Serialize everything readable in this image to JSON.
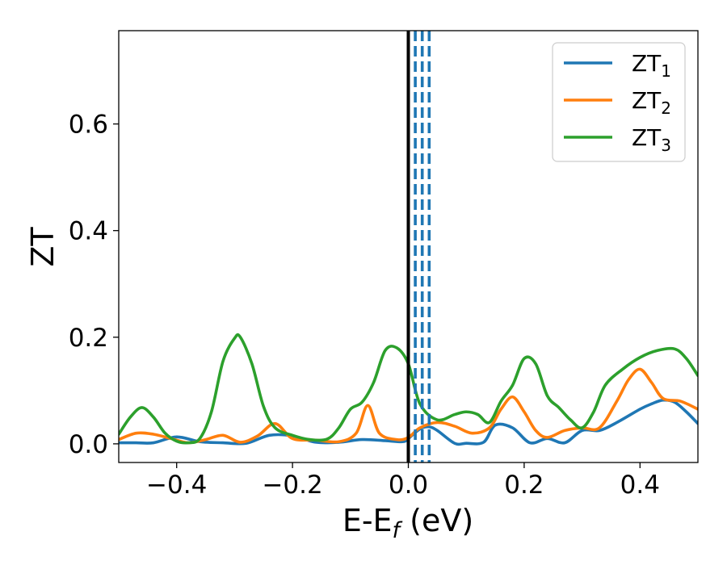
{
  "chart_data": {
    "type": "line",
    "title": "",
    "xlabel": "E-E",
    "xlabel_sub": "f",
    "xlabel_unit": " (eV)",
    "ylabel": "ZT",
    "xlim": [
      -0.5,
      0.5
    ],
    "ylim": [
      -0.035,
      0.775
    ],
    "x_ticks": [
      -0.4,
      -0.2,
      0.0,
      0.2,
      0.4
    ],
    "x_tick_labels": [
      "−0.4",
      "−0.2",
      "0.0",
      "0.2",
      "0.4"
    ],
    "y_ticks": [
      0.0,
      0.2,
      0.4,
      0.6
    ],
    "y_tick_labels": [
      "0.0",
      "0.2",
      "0.4",
      "0.6"
    ],
    "grid": false,
    "legend_position": "top-right",
    "vertical_lines": [
      {
        "x": 0.0,
        "style": "solid",
        "color": "#000000"
      },
      {
        "x": 0.012,
        "style": "dashed",
        "color": "#1f77b4"
      },
      {
        "x": 0.024,
        "style": "dashed",
        "color": "#1f77b4"
      },
      {
        "x": 0.036,
        "style": "dashed",
        "color": "#1f77b4"
      }
    ],
    "series": [
      {
        "name": "ZT",
        "name_sub": "1",
        "color": "#1f77b4",
        "x": [
          -0.5,
          -0.47,
          -0.44,
          -0.4,
          -0.36,
          -0.32,
          -0.28,
          -0.24,
          -0.2,
          -0.16,
          -0.12,
          -0.08,
          -0.04,
          -0.01,
          0.0,
          0.02,
          0.035,
          0.05,
          0.08,
          0.1,
          0.13,
          0.15,
          0.18,
          0.21,
          0.24,
          0.27,
          0.3,
          0.33,
          0.36,
          0.4,
          0.42,
          0.44,
          0.46,
          0.48,
          0.5
        ],
        "y": [
          0.002,
          0.002,
          0.002,
          0.013,
          0.004,
          0.002,
          0.001,
          0.016,
          0.015,
          0.003,
          0.003,
          0.008,
          0.006,
          0.004,
          0.01,
          0.028,
          0.032,
          0.025,
          0.001,
          0.001,
          0.003,
          0.035,
          0.03,
          0.002,
          0.01,
          0.002,
          0.025,
          0.025,
          0.04,
          0.065,
          0.075,
          0.082,
          0.078,
          0.06,
          0.038
        ]
      },
      {
        "name": "ZT",
        "name_sub": "2",
        "color": "#ff7f0e",
        "x": [
          -0.5,
          -0.47,
          -0.44,
          -0.41,
          -0.38,
          -0.35,
          -0.32,
          -0.29,
          -0.26,
          -0.23,
          -0.2,
          -0.16,
          -0.12,
          -0.09,
          -0.07,
          -0.05,
          -0.02,
          0.0,
          0.02,
          0.05,
          0.08,
          0.11,
          0.14,
          0.16,
          0.18,
          0.2,
          0.22,
          0.24,
          0.27,
          0.3,
          0.33,
          0.36,
          0.38,
          0.4,
          0.42,
          0.44,
          0.47,
          0.5
        ],
        "y": [
          0.008,
          0.02,
          0.018,
          0.01,
          0.002,
          0.008,
          0.016,
          0.003,
          0.015,
          0.038,
          0.01,
          0.007,
          0.004,
          0.02,
          0.072,
          0.02,
          0.008,
          0.012,
          0.03,
          0.04,
          0.033,
          0.02,
          0.03,
          0.065,
          0.088,
          0.06,
          0.025,
          0.012,
          0.025,
          0.03,
          0.03,
          0.08,
          0.12,
          0.14,
          0.115,
          0.085,
          0.08,
          0.065
        ]
      },
      {
        "name": "ZT",
        "name_sub": "3",
        "color": "#2ca02c",
        "x": [
          -0.5,
          -0.48,
          -0.46,
          -0.44,
          -0.42,
          -0.4,
          -0.38,
          -0.36,
          -0.34,
          -0.32,
          -0.3,
          -0.29,
          -0.27,
          -0.25,
          -0.23,
          -0.2,
          -0.17,
          -0.14,
          -0.12,
          -0.1,
          -0.08,
          -0.06,
          -0.04,
          -0.02,
          0.0,
          0.02,
          0.05,
          0.08,
          0.1,
          0.12,
          0.14,
          0.16,
          0.18,
          0.2,
          0.22,
          0.24,
          0.26,
          0.28,
          0.3,
          0.32,
          0.34,
          0.37,
          0.4,
          0.43,
          0.46,
          0.48,
          0.5
        ],
        "y": [
          0.018,
          0.05,
          0.068,
          0.05,
          0.02,
          0.005,
          0.002,
          0.01,
          0.06,
          0.155,
          0.198,
          0.2,
          0.15,
          0.07,
          0.03,
          0.016,
          0.008,
          0.009,
          0.03,
          0.065,
          0.078,
          0.115,
          0.175,
          0.18,
          0.15,
          0.075,
          0.045,
          0.055,
          0.06,
          0.055,
          0.04,
          0.08,
          0.11,
          0.16,
          0.15,
          0.09,
          0.068,
          0.045,
          0.03,
          0.06,
          0.11,
          0.14,
          0.162,
          0.175,
          0.178,
          0.16,
          0.128
        ]
      }
    ]
  }
}
